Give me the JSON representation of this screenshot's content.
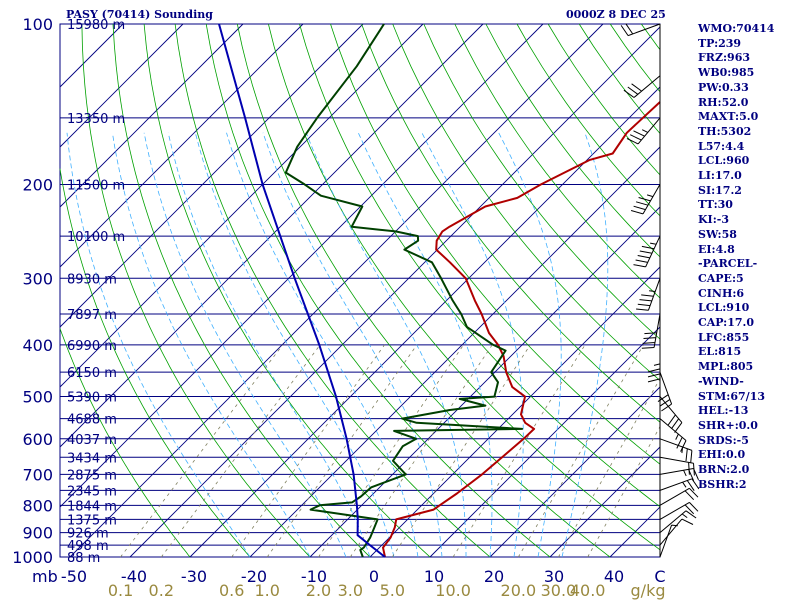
{
  "header": {
    "station": "PASY (70414) Sounding",
    "datetime": "0000Z  8 DEC 25"
  },
  "indices": [
    "WMO:70414",
    "TP:239",
    "FRZ:963",
    "WB0:985",
    "PW:0.33",
    "RH:52.0",
    "MAXT:5.0",
    "TH:5302",
    "L57:4.4",
    "LCL:960",
    "LI:17.0",
    "SI:17.2",
    "TT:30",
    "KI:-3",
    "SW:58",
    "EI:4.8",
    "-PARCEL-",
    "CAPE:5",
    "CINH:6",
    "LCL:910",
    "CAP:17.0",
    "LFC:855",
    "EL:815",
    "MPL:805",
    "-WIND-",
    "STM:67/13",
    "HEL:-13",
    "SHR+:0.0",
    "SRDS:-5",
    "EHI:0.0",
    "BRN:2.0",
    "BSHR:2"
  ],
  "colors": {
    "temperature": "#b00000",
    "dewpoint": "#004000",
    "parcel": "#0000b0",
    "isobar": "#000080",
    "isotherm": "#000080",
    "dry_adiabat": "#00a000",
    "moist_adiabat": "#40b0ff",
    "mixing_ratio": "#808060",
    "wind": "#000000",
    "mixing_label": "#9a8a40"
  },
  "chart_data": {
    "type": "skew-t",
    "title": "PASY (70414) Sounding 0000Z 8 DEC 25",
    "pressure_axis_label": "mb",
    "pressure_ticks": [
      100,
      200,
      300,
      400,
      500,
      600,
      700,
      800,
      900,
      1000
    ],
    "temperature_axis_label": "C",
    "temperature_ticks": [
      -50,
      -40,
      -30,
      -20,
      -10,
      0,
      10,
      20,
      30,
      40
    ],
    "mixing_ratio_label": "g/kg",
    "mixing_ratio_ticks": [
      "0.1",
      "0.2",
      "0.6",
      "1.0",
      "2.0",
      "3.0",
      "5.0",
      "10.0",
      "20.0",
      "30.0",
      "40.0"
    ],
    "height_labels": [
      {
        "p": 100,
        "h": "15980 m"
      },
      {
        "p": 150,
        "h": "13350 m"
      },
      {
        "p": 200,
        "h": "11500 m"
      },
      {
        "p": 250,
        "h": "10100 m"
      },
      {
        "p": 300,
        "h": "8930 m"
      },
      {
        "p": 350,
        "h": "7897 m"
      },
      {
        "p": 400,
        "h": "6990 m"
      },
      {
        "p": 450,
        "h": "6150 m"
      },
      {
        "p": 500,
        "h": "5390 m"
      },
      {
        "p": 550,
        "h": "4688 m"
      },
      {
        "p": 600,
        "h": "4037 m"
      },
      {
        "p": 650,
        "h": "3434 m"
      },
      {
        "p": 700,
        "h": "2875 m"
      },
      {
        "p": 750,
        "h": "2345 m"
      },
      {
        "p": 800,
        "h": "1844 m"
      },
      {
        "p": 850,
        "h": "1375 m"
      },
      {
        "p": 900,
        "h": "926 m"
      },
      {
        "p": 950,
        "h": "498 m"
      },
      {
        "p": 1000,
        "h": "88 m"
      }
    ],
    "series": [
      {
        "name": "temperature",
        "points": [
          [
            1010,
            3.6
          ],
          [
            1000,
            2.5
          ],
          [
            960,
            0.6
          ],
          [
            920,
            0.2
          ],
          [
            880,
            -0.8
          ],
          [
            850,
            -1.9
          ],
          [
            815,
            2.7
          ],
          [
            800,
            3.0
          ],
          [
            760,
            3.9
          ],
          [
            700,
            4.9
          ],
          [
            650,
            5.4
          ],
          [
            600,
            5.9
          ],
          [
            575,
            6.0
          ],
          [
            560,
            3.5
          ],
          [
            540,
            1.4
          ],
          [
            500,
            -0.9
          ],
          [
            480,
            -4.6
          ],
          [
            450,
            -8.1
          ],
          [
            420,
            -11.2
          ],
          [
            400,
            -14.0
          ],
          [
            380,
            -17.5
          ],
          [
            350,
            -21.9
          ],
          [
            330,
            -25.3
          ],
          [
            300,
            -30.5
          ],
          [
            280,
            -35.8
          ],
          [
            265,
            -40.2
          ],
          [
            255,
            -41.6
          ],
          [
            245,
            -42.2
          ],
          [
            240,
            -41.8
          ],
          [
            220,
            -39.2
          ],
          [
            212,
            -35.3
          ],
          [
            200,
            -33.6
          ],
          [
            180,
            -29.6
          ],
          [
            175,
            -26.8
          ],
          [
            160,
            -27.9
          ],
          [
            140,
            -27.5
          ],
          [
            120,
            -21.4
          ],
          [
            100,
            -14.4
          ]
        ]
      },
      {
        "name": "dewpoint",
        "points": [
          [
            1010,
            -0.4
          ],
          [
            1000,
            -1.2
          ],
          [
            970,
            -2.8
          ],
          [
            960,
            -2.6
          ],
          [
            920,
            -3.2
          ],
          [
            880,
            -4.2
          ],
          [
            850,
            -5.0
          ],
          [
            815,
            -17.8
          ],
          [
            800,
            -17.0
          ],
          [
            790,
            -12.1
          ],
          [
            770,
            -11.6
          ],
          [
            740,
            -11.4
          ],
          [
            700,
            -7.8
          ],
          [
            660,
            -12.2
          ],
          [
            620,
            -13.0
          ],
          [
            600,
            -12.0
          ],
          [
            580,
            -17.0
          ],
          [
            575,
            4.0
          ],
          [
            560,
            -14.6
          ],
          [
            550,
            -17.7
          ],
          [
            530,
            -11.2
          ],
          [
            520,
            -6.0
          ],
          [
            505,
            -11.4
          ],
          [
            500,
            -6.0
          ],
          [
            470,
            -7.8
          ],
          [
            450,
            -10.6
          ],
          [
            410,
            -11.8
          ],
          [
            400,
            -14.8
          ],
          [
            370,
            -22.2
          ],
          [
            350,
            -25.3
          ],
          [
            330,
            -29.0
          ],
          [
            300,
            -34.6
          ],
          [
            280,
            -38.8
          ],
          [
            265,
            -45.5
          ],
          [
            255,
            -44.7
          ],
          [
            250,
            -45.5
          ],
          [
            245,
            -50.0
          ],
          [
            240,
            -58.1
          ],
          [
            220,
            -59.7
          ],
          [
            210,
            -68.4
          ],
          [
            200,
            -73.0
          ],
          [
            190,
            -78.1
          ],
          [
            170,
            -80.5
          ],
          [
            150,
            -82.0
          ],
          [
            120,
            -84.0
          ],
          [
            100,
            -86.5
          ]
        ]
      },
      {
        "name": "parcel",
        "points": [
          [
            1010,
            3.6
          ],
          [
            1000,
            2.5
          ],
          [
            950,
            -2.0
          ],
          [
            910,
            -5.7
          ],
          [
            850,
            -8.3
          ],
          [
            800,
            -10.8
          ],
          [
            700,
            -16.5
          ],
          [
            600,
            -23.6
          ],
          [
            500,
            -32.4
          ],
          [
            400,
            -43.8
          ],
          [
            300,
            -59.0
          ],
          [
            200,
            -80.0
          ],
          [
            150,
            -94.0
          ],
          [
            100,
            -114.0
          ]
        ]
      }
    ],
    "wind_barbs": [
      {
        "p": 1000,
        "dir": 20,
        "spd": 5
      },
      {
        "p": 950,
        "dir": 40,
        "spd": 10
      },
      {
        "p": 900,
        "dir": 50,
        "spd": 15
      },
      {
        "p": 850,
        "dir": 60,
        "spd": 20
      },
      {
        "p": 800,
        "dir": 60,
        "spd": 20
      },
      {
        "p": 750,
        "dir": 70,
        "spd": 25
      },
      {
        "p": 700,
        "dir": 80,
        "spd": 25
      },
      {
        "p": 650,
        "dir": 100,
        "spd": 20
      },
      {
        "p": 600,
        "dir": 110,
        "spd": 25
      },
      {
        "p": 550,
        "dir": 130,
        "spd": 25
      },
      {
        "p": 500,
        "dir": 140,
        "spd": 30
      },
      {
        "p": 450,
        "dir": 160,
        "spd": 30
      },
      {
        "p": 400,
        "dir": 180,
        "spd": 35
      },
      {
        "p": 350,
        "dir": 190,
        "spd": 40
      },
      {
        "p": 300,
        "dir": 200,
        "spd": 45
      },
      {
        "p": 250,
        "dir": 205,
        "spd": 55
      },
      {
        "p": 200,
        "dir": 210,
        "spd": 45
      },
      {
        "p": 150,
        "dir": 220,
        "spd": 35
      },
      {
        "p": 125,
        "dir": 230,
        "spd": 30
      },
      {
        "p": 100,
        "dir": 250,
        "spd": 20
      }
    ]
  }
}
